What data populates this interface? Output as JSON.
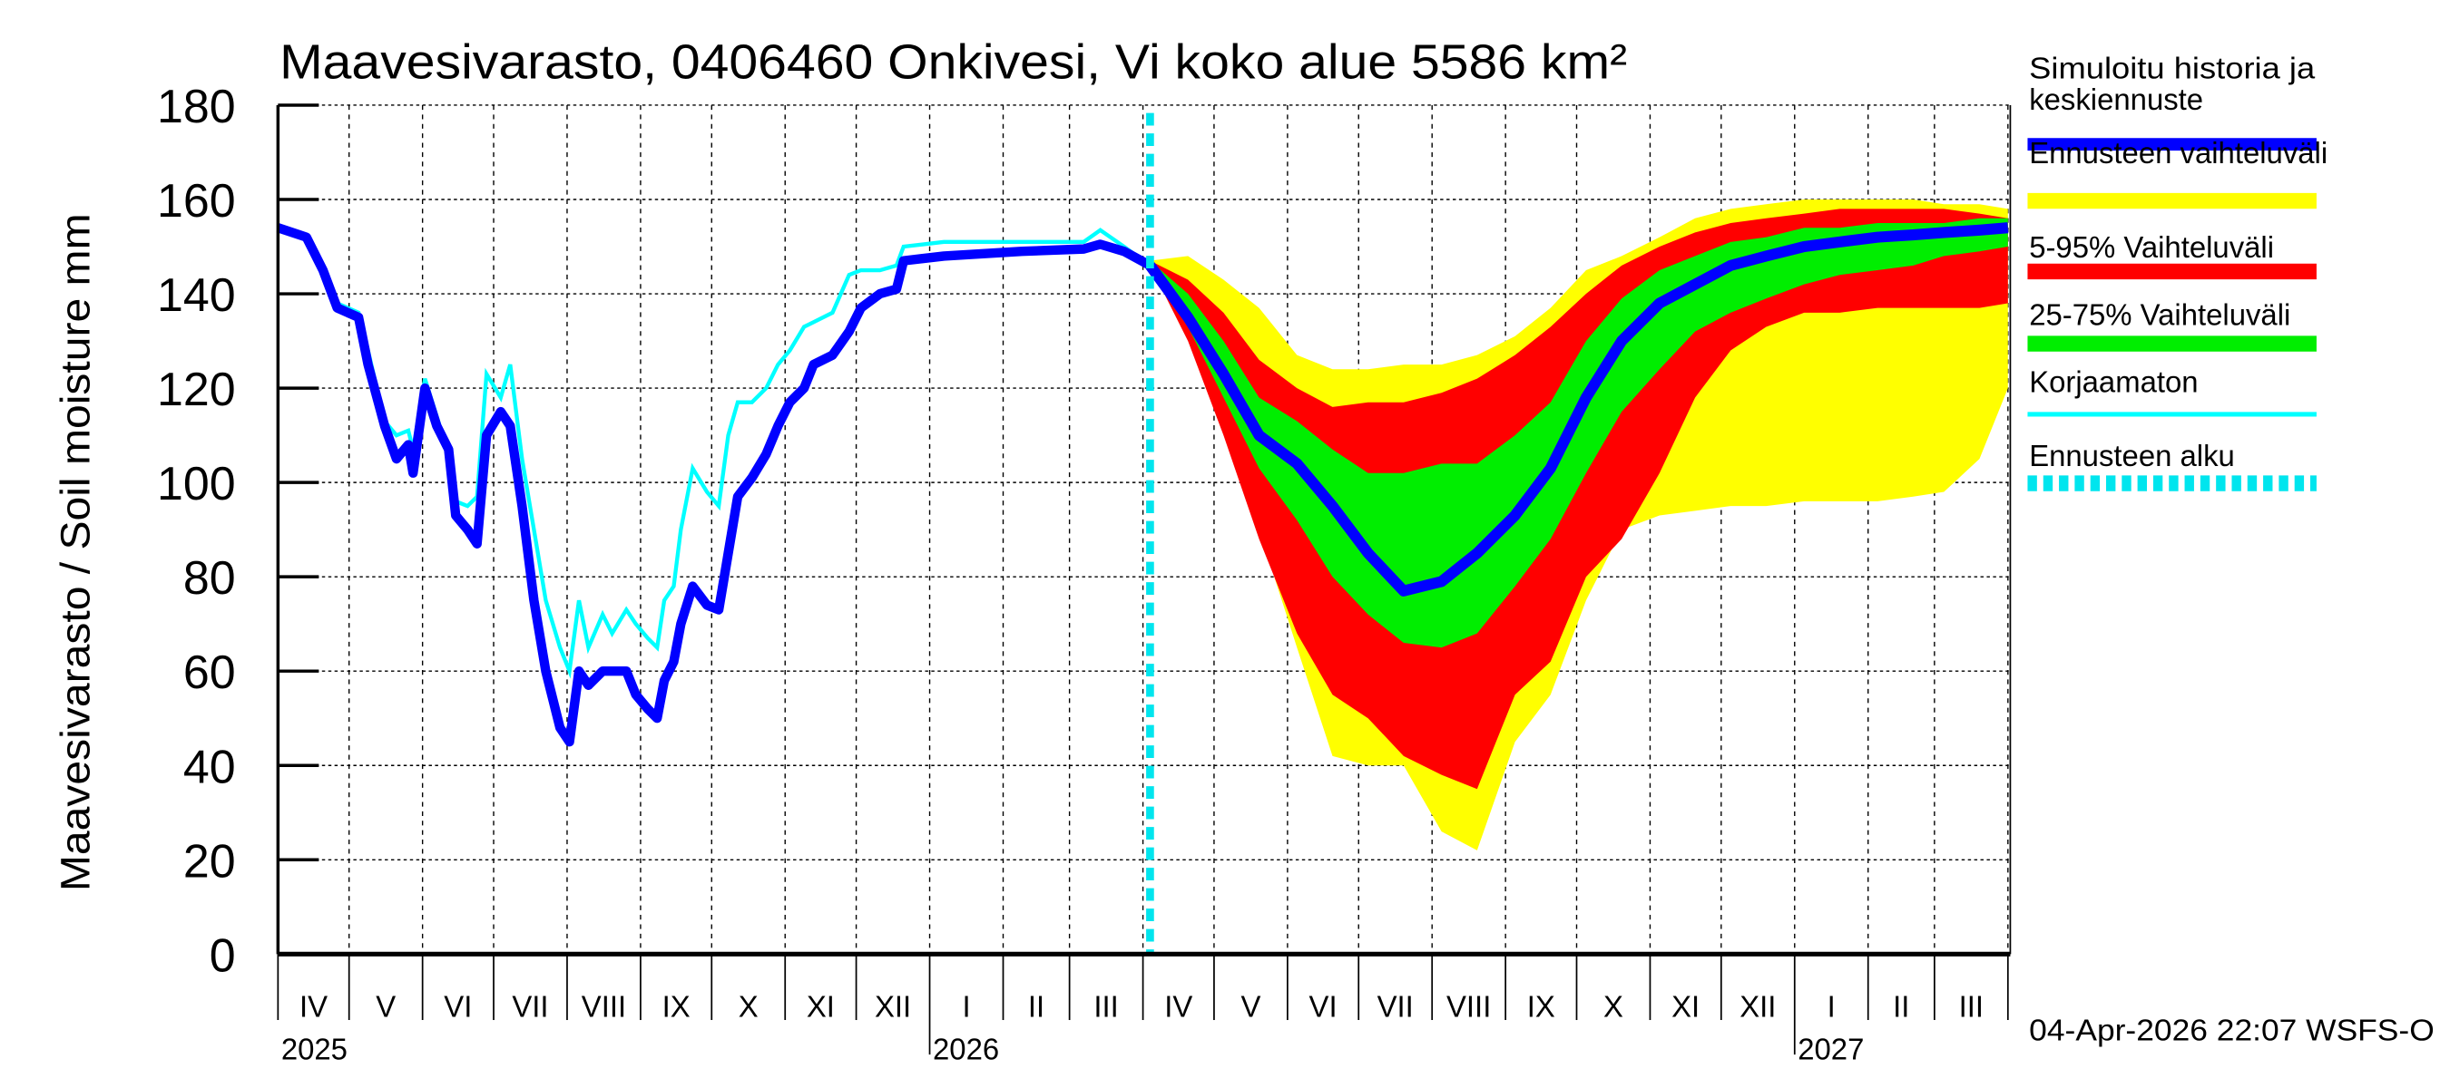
{
  "chart_data": {
    "type": "area",
    "title": "Maavesivarasto, 0406460 Onkivesi, Vi koko alue 5586 km²",
    "ylabel": "Maavesivarasto / Soil moisture   mm",
    "ylim": [
      0,
      180
    ],
    "yticks": [
      0,
      20,
      40,
      60,
      80,
      100,
      120,
      140,
      160,
      180
    ],
    "xlim": [
      "2025-04-01",
      "2027-04-02"
    ],
    "month_labels": [
      "IV",
      "V",
      "VI",
      "VII",
      "VIII",
      "IX",
      "X",
      "XI",
      "XII",
      "I",
      "II",
      "III",
      "IV",
      "V",
      "VI",
      "VII",
      "VIII",
      "IX",
      "X",
      "XI",
      "XII",
      "I",
      "II",
      "III"
    ],
    "year_labels": [
      "2025",
      "2026",
      "2027"
    ],
    "grid": true,
    "forecast_start": "2026-04-04",
    "footer": "04-Apr-2026 22:07 WSFS-O",
    "legend": [
      {
        "label": "Simuloitu historia ja keskiennuste",
        "color": "#0000ff",
        "style": "thick"
      },
      {
        "label": "Ennusteen vaihteluväli",
        "color": "#ffff00",
        "style": "band"
      },
      {
        "label": "5-95% Vaihteluväli",
        "color": "#ff0000",
        "style": "band"
      },
      {
        "label": "25-75% Vaihteluväli",
        "color": "#00ee00",
        "style": "band"
      },
      {
        "label": "Korjaamaton",
        "color": "#00ffff",
        "style": "thin"
      },
      {
        "label": "Ennusteen alku",
        "color": "#00e5ee",
        "style": "dashed"
      }
    ],
    "history": {
      "dates": [
        "2025-04-01",
        "2025-04-13",
        "2025-04-20",
        "2025-04-26",
        "2025-05-05",
        "2025-05-09",
        "2025-05-16",
        "2025-05-21",
        "2025-05-26",
        "2025-05-28",
        "2025-06-02",
        "2025-06-07",
        "2025-06-12",
        "2025-06-15",
        "2025-06-20",
        "2025-06-24",
        "2025-06-28",
        "2025-07-04",
        "2025-07-08",
        "2025-07-13",
        "2025-07-18",
        "2025-07-23",
        "2025-07-29",
        "2025-08-02",
        "2025-08-06",
        "2025-08-10",
        "2025-08-16",
        "2025-08-20",
        "2025-08-26",
        "2025-08-30",
        "2025-09-04",
        "2025-09-08",
        "2025-09-11",
        "2025-09-15",
        "2025-09-18",
        "2025-09-23",
        "2025-09-29",
        "2025-10-04",
        "2025-10-08",
        "2025-10-12",
        "2025-10-18",
        "2025-10-24",
        "2025-10-29",
        "2025-11-03",
        "2025-11-09",
        "2025-11-13",
        "2025-11-21",
        "2025-11-28",
        "2025-12-03",
        "2025-12-11",
        "2025-12-18",
        "2025-12-21",
        "2026-01-07",
        "2026-02-09",
        "2026-03-07",
        "2026-03-14",
        "2026-03-24",
        "2026-04-04"
      ],
      "simulated": [
        154,
        152,
        145,
        137,
        135,
        125,
        112,
        105,
        108,
        102,
        120,
        112,
        107,
        93,
        90,
        87,
        110,
        115,
        112,
        95,
        75,
        60,
        48,
        45,
        60,
        57,
        60,
        60,
        60,
        55,
        52,
        50,
        58,
        62,
        70,
        78,
        74,
        73,
        85,
        97,
        101,
        106,
        112,
        117,
        120,
        125,
        127,
        132,
        137,
        140,
        141,
        147,
        148,
        149,
        149.5,
        150.5,
        149,
        146
      ],
      "uncorrected": [
        154,
        152,
        146,
        138,
        136,
        128,
        113,
        110,
        111,
        107,
        122,
        114,
        106,
        96,
        95,
        97,
        123,
        118,
        125,
        105,
        90,
        75,
        65,
        60,
        75,
        65,
        72,
        68,
        73,
        70,
        67,
        65,
        75,
        78,
        90,
        103,
        98,
        95,
        110,
        117,
        117,
        120,
        125,
        128,
        133,
        134,
        136,
        144,
        145,
        145,
        146,
        150,
        151,
        151,
        151,
        153.5,
        150,
        146
      ]
    },
    "forecast": {
      "dates": [
        "2026-04-04",
        "2026-04-20",
        "2026-05-05",
        "2026-05-20",
        "2026-06-05",
        "2026-06-20",
        "2026-07-05",
        "2026-07-20",
        "2026-08-05",
        "2026-08-20",
        "2026-09-05",
        "2026-09-20",
        "2026-10-05",
        "2026-10-20",
        "2026-11-05",
        "2026-11-20",
        "2026-12-05",
        "2026-12-20",
        "2027-01-05",
        "2027-01-20",
        "2027-02-05",
        "2027-02-20",
        "2027-03-05",
        "2027-03-20",
        "2027-04-01"
      ],
      "median": [
        146,
        135,
        123,
        110,
        104,
        95,
        85,
        77,
        79,
        85,
        93,
        103,
        118,
        130,
        138,
        142,
        146,
        148,
        150,
        151,
        152,
        152.5,
        153,
        153.5,
        154
      ],
      "p25": [
        146,
        133,
        118,
        103,
        92,
        80,
        72,
        66,
        65,
        68,
        78,
        88,
        102,
        115,
        124,
        132,
        136,
        139,
        142,
        144,
        145,
        146,
        148,
        149,
        150
      ],
      "p75": [
        147,
        140,
        130,
        118,
        113,
        107,
        102,
        102,
        104,
        104,
        110,
        117,
        130,
        139,
        145,
        148,
        151,
        152,
        154,
        154,
        155,
        155,
        155,
        156,
        156
      ],
      "p5": [
        146,
        130,
        110,
        88,
        68,
        55,
        50,
        42,
        38,
        35,
        55,
        62,
        80,
        88,
        102,
        118,
        128,
        133,
        136,
        136,
        137,
        137,
        137,
        137,
        138
      ],
      "p95": [
        147,
        143,
        136,
        126,
        120,
        116,
        117,
        117,
        119,
        122,
        127,
        133,
        140,
        146,
        150,
        153,
        155,
        156,
        157,
        158,
        158,
        158,
        158,
        157,
        156
      ],
      "min": [
        146,
        132,
        112,
        90,
        65,
        42,
        40,
        40,
        26,
        22,
        45,
        55,
        75,
        90,
        93,
        94,
        95,
        95,
        96,
        96,
        96,
        97,
        98,
        105,
        120
      ],
      "max": [
        147,
        148,
        143,
        137,
        127,
        124,
        124,
        125,
        125,
        127,
        131,
        137,
        145,
        148,
        152,
        156,
        158,
        159,
        160,
        160,
        160,
        160,
        159,
        159,
        158
      ]
    }
  }
}
